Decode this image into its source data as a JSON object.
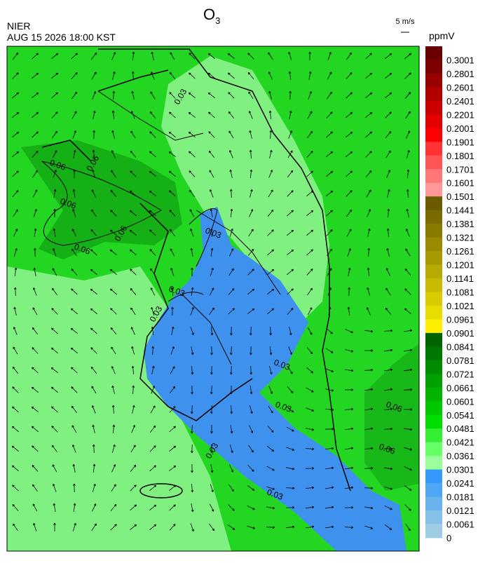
{
  "header": {
    "agency": "NIER",
    "datetime": "AUG 15 2026 18:00 KST",
    "title": {
      "text": "O",
      "sub": "3"
    },
    "wind_scale": "5 m/s",
    "unit": "ppmV"
  },
  "contour_labels": [
    "0.03",
    "0.03",
    "0.03",
    "0.03",
    "0.03",
    "0.03",
    "0.03",
    "0.03",
    "0.06",
    "0.06",
    "0.06",
    "0.06",
    "0.06",
    "0.06",
    "0.06"
  ],
  "colorbar": {
    "labels": [
      0.3001,
      0.2801,
      0.2601,
      0.2401,
      0.2201,
      0.2001,
      0.1901,
      0.1801,
      0.1701,
      0.1601,
      0.1501,
      0.1441,
      0.1381,
      0.1321,
      0.1261,
      0.1201,
      0.1141,
      0.1081,
      0.1021,
      0.0961,
      0.0901,
      0.0841,
      0.0781,
      0.0721,
      0.0661,
      0.0601,
      0.0541,
      0.0481,
      0.0421,
      0.0361,
      0.0301,
      0.0241,
      0.0181,
      0.0121,
      0.0061,
      0
    ],
    "colors": [
      "#6b0000",
      "#7f0000",
      "#990000",
      "#b20000",
      "#cc0000",
      "#e50000",
      "#ff0000",
      "#ff3333",
      "#ff5555",
      "#ff7777",
      "#ff9999",
      "#6b5a00",
      "#7a6a00",
      "#8a7a00",
      "#998a00",
      "#a99900",
      "#b8aa00",
      "#c8ba00",
      "#d8cb00",
      "#e8dc00",
      "#ffee00",
      "#006400",
      "#007800",
      "#008c00",
      "#00a000",
      "#00b400",
      "#00c800",
      "#00dc00",
      "#33ee33",
      "#66ff66",
      "#99ff99",
      "#3399ff",
      "#4fa6f5",
      "#6ab3ee",
      "#85c0e8",
      "#a0cde6"
    ]
  }
}
